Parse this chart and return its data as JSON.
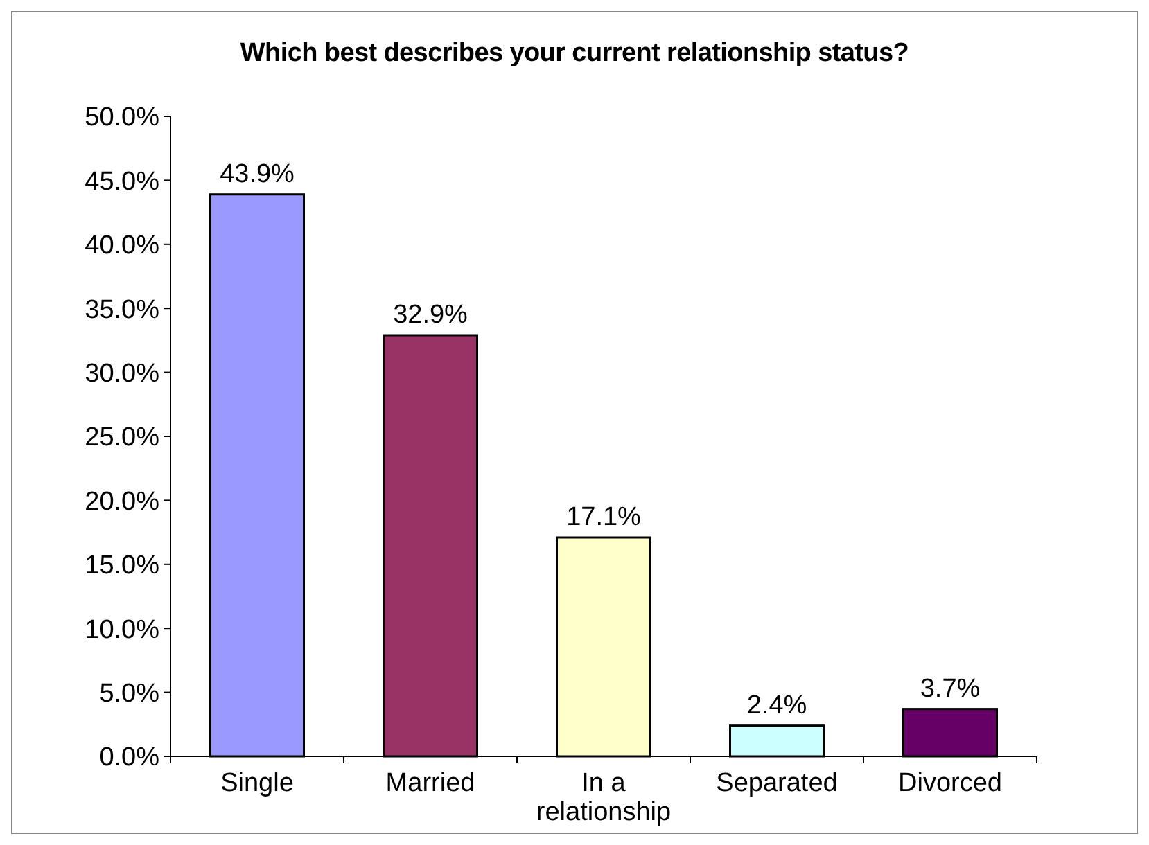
{
  "chart_data": {
    "type": "bar",
    "title": "Which best describes your current relationship status?",
    "categories": [
      "Single",
      "Married",
      "In a relationship",
      "Separated",
      "Divorced"
    ],
    "values": [
      43.9,
      32.9,
      17.1,
      2.4,
      3.7
    ],
    "value_labels": [
      "43.9%",
      "32.9%",
      "17.1%",
      "2.4%",
      "3.7%"
    ],
    "colors": [
      "#9999ff",
      "#993366",
      "#ffffcc",
      "#ccffff",
      "#660066"
    ],
    "ylim": [
      0,
      50
    ],
    "yticks": [
      {
        "value": 0,
        "label": "0.0%"
      },
      {
        "value": 5,
        "label": "5.0%"
      },
      {
        "value": 10,
        "label": "10.0%"
      },
      {
        "value": 15,
        "label": "15.0%"
      },
      {
        "value": 20,
        "label": "20.0%"
      },
      {
        "value": 25,
        "label": "25.0%"
      },
      {
        "value": 30,
        "label": "30.0%"
      },
      {
        "value": 35,
        "label": "35.0%"
      },
      {
        "value": 40,
        "label": "40.0%"
      },
      {
        "value": 45,
        "label": "45.0%"
      },
      {
        "value": 50,
        "label": "50.0%"
      }
    ],
    "grid": false
  }
}
